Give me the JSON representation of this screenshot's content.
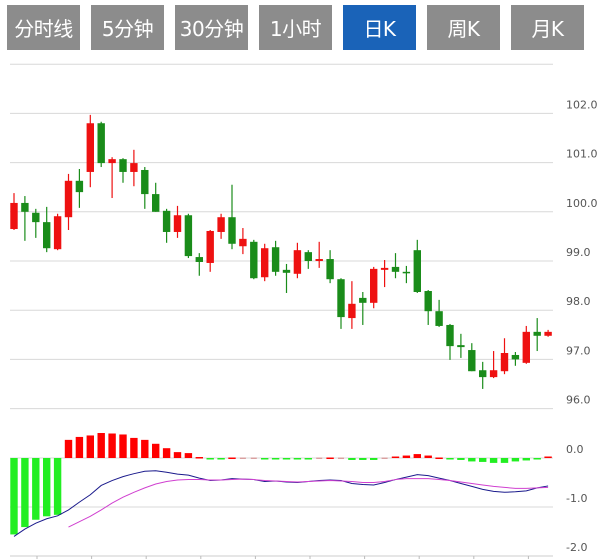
{
  "tabs": [
    {
      "label": "分时线",
      "active": false
    },
    {
      "label": "5分钟",
      "active": false
    },
    {
      "label": "30分钟",
      "active": false
    },
    {
      "label": "1小时",
      "active": false
    },
    {
      "label": "日K",
      "active": true
    },
    {
      "label": "周K",
      "active": false
    },
    {
      "label": "月K",
      "active": false
    }
  ],
  "colors": {
    "tab_bg": "#8c8c8c",
    "tab_active": "#1a63b8",
    "up": "#ee1111",
    "down": "#1a8c1a",
    "hist_up": "#ff0000",
    "hist_down": "#22ee22",
    "dif": "#1a1a8c",
    "dea": "#d040d0"
  },
  "chart_data": [
    {
      "type": "candlestick",
      "ylim": [
        96.0,
        103.0
      ],
      "yticks": [
        "102.0",
        "101.0",
        "100.0",
        "99.0",
        "98.0",
        "97.0",
        "96.0"
      ],
      "grid": true,
      "open": [
        99.65,
        100.18,
        99.98,
        99.79,
        99.24,
        99.89,
        100.63,
        100.81,
        101.8,
        100.99,
        101.07,
        100.81,
        100.85,
        100.36,
        100.02,
        99.59,
        99.93,
        99.08,
        98.96,
        99.59,
        99.89,
        99.3,
        99.39,
        98.67,
        99.28,
        98.82,
        98.74,
        99.18,
        99.0,
        99.04,
        98.63,
        97.84,
        98.25,
        98.15,
        98.82,
        98.88,
        98.78,
        99.22,
        98.39,
        97.98,
        97.7,
        97.29,
        97.19,
        96.78,
        96.64,
        96.76,
        97.09,
        96.93,
        97.56,
        97.48
      ],
      "high": [
        100.38,
        100.32,
        100.06,
        100.1,
        99.96,
        100.77,
        100.87,
        101.97,
        101.83,
        101.11,
        101.09,
        101.26,
        100.91,
        100.59,
        100.06,
        100.12,
        99.96,
        99.16,
        99.63,
        99.96,
        100.55,
        99.67,
        99.43,
        99.35,
        99.41,
        98.94,
        99.37,
        99.22,
        99.39,
        99.22,
        98.65,
        98.59,
        98.37,
        98.88,
        99.02,
        99.16,
        98.9,
        99.43,
        98.41,
        98.21,
        97.72,
        97.52,
        97.33,
        96.95,
        97.17,
        97.43,
        97.15,
        97.68,
        97.84,
        97.6
      ],
      "low": [
        99.63,
        99.41,
        99.47,
        99.18,
        99.22,
        99.63,
        100.08,
        100.5,
        100.91,
        100.28,
        100.59,
        100.52,
        100.06,
        100.0,
        99.37,
        99.47,
        99.06,
        98.7,
        98.78,
        99.45,
        99.24,
        99.14,
        98.63,
        98.59,
        98.7,
        98.35,
        98.65,
        98.84,
        98.86,
        98.55,
        97.62,
        97.62,
        97.7,
        98.04,
        98.47,
        98.65,
        98.55,
        98.35,
        97.7,
        97.66,
        96.99,
        97.03,
        96.76,
        96.4,
        96.62,
        96.7,
        96.87,
        96.91,
        97.17,
        97.46
      ],
      "close": [
        100.18,
        100.0,
        99.79,
        99.26,
        99.91,
        100.63,
        100.4,
        101.8,
        100.99,
        101.07,
        100.81,
        100.99,
        100.36,
        100.0,
        99.59,
        99.93,
        99.1,
        98.98,
        99.61,
        99.89,
        99.35,
        99.45,
        98.65,
        99.26,
        98.78,
        98.76,
        99.22,
        99.0,
        99.04,
        98.63,
        97.86,
        98.13,
        98.15,
        98.84,
        98.86,
        98.78,
        98.76,
        98.37,
        97.98,
        97.68,
        97.27,
        97.25,
        96.76,
        96.64,
        96.78,
        97.13,
        97.0,
        97.56,
        97.48,
        97.56
      ]
    },
    {
      "type": "bar+line",
      "ylim": [
        -2.0,
        0.3
      ],
      "yticks": [
        "0.0",
        "-1.0",
        "-2.0"
      ],
      "grid": true,
      "histogram": [
        -1.56,
        -1.41,
        -1.26,
        -1.19,
        -1.16,
        0.37,
        0.43,
        0.46,
        0.51,
        0.5,
        0.48,
        0.41,
        0.37,
        0.29,
        0.2,
        0.12,
        0.1,
        0.02,
        -0.01,
        -0.01,
        0.01,
        0,
        0,
        -0.02,
        -0.02,
        -0.02,
        -0.02,
        -0.01,
        0,
        0.01,
        0,
        -0.04,
        -0.04,
        -0.04,
        0,
        0.03,
        0.05,
        0.08,
        0.05,
        0.01,
        -0.01,
        -0.04,
        -0.07,
        -0.08,
        -0.1,
        -0.1,
        -0.07,
        -0.05,
        -0.01,
        0.03
      ],
      "dif": [
        -1.6,
        -1.45,
        -1.33,
        -1.24,
        -1.18,
        -1.06,
        -0.9,
        -0.75,
        -0.56,
        -0.46,
        -0.38,
        -0.32,
        -0.27,
        -0.26,
        -0.29,
        -0.33,
        -0.35,
        -0.41,
        -0.46,
        -0.45,
        -0.42,
        -0.43,
        -0.44,
        -0.48,
        -0.47,
        -0.49,
        -0.5,
        -0.48,
        -0.46,
        -0.45,
        -0.46,
        -0.52,
        -0.54,
        -0.55,
        -0.5,
        -0.44,
        -0.39,
        -0.34,
        -0.36,
        -0.41,
        -0.46,
        -0.52,
        -0.58,
        -0.64,
        -0.68,
        -0.7,
        -0.69,
        -0.67,
        -0.61,
        -0.57
      ],
      "dea": [
        null,
        null,
        null,
        null,
        null,
        -1.41,
        -1.3,
        -1.19,
        -1.06,
        -0.92,
        -0.8,
        -0.7,
        -0.61,
        -0.53,
        -0.48,
        -0.45,
        -0.44,
        -0.44,
        -0.45,
        -0.45,
        -0.44,
        -0.43,
        -0.44,
        -0.46,
        -0.47,
        -0.48,
        -0.49,
        -0.48,
        -0.47,
        -0.46,
        -0.47,
        -0.48,
        -0.5,
        -0.5,
        -0.48,
        -0.44,
        -0.42,
        -0.42,
        -0.42,
        -0.44,
        -0.46,
        -0.49,
        -0.52,
        -0.55,
        -0.58,
        -0.6,
        -0.62,
        -0.62,
        -0.61,
        -0.6
      ]
    }
  ]
}
